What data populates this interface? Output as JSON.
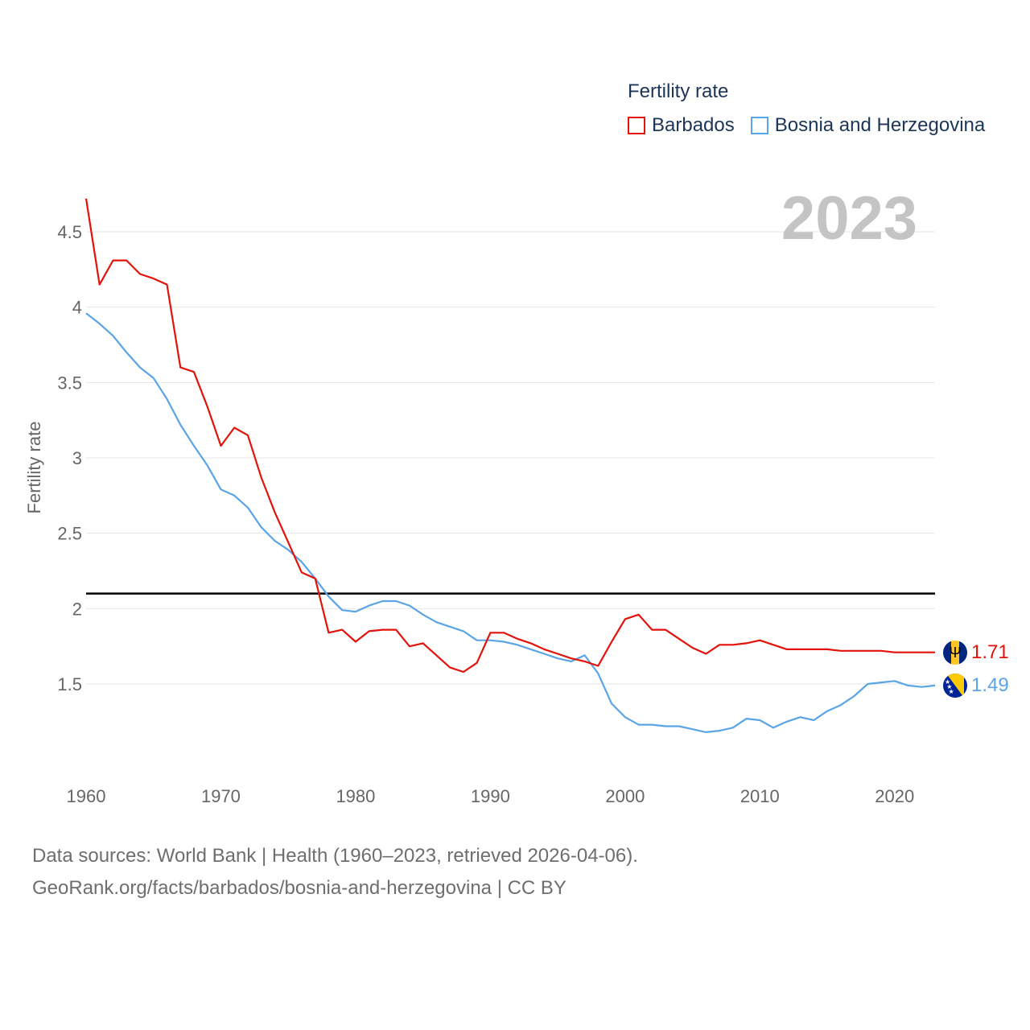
{
  "chart_data": {
    "type": "line",
    "title": "Fertility rate",
    "ylabel": "Fertility rate",
    "xlabel": "",
    "year_label": "2023",
    "xlim": [
      1960,
      2023
    ],
    "ylim": [
      1.0,
      4.7
    ],
    "yticks": [
      1.5,
      2,
      2.5,
      3,
      3.5,
      4,
      4.5
    ],
    "ytick_labels": [
      "1.5",
      "2",
      "2.5",
      "3",
      "3.5",
      "4",
      "4.5"
    ],
    "xticks": [
      1960,
      1970,
      1980,
      1990,
      2000,
      2010,
      2020
    ],
    "xtick_labels": [
      "1960",
      "1970",
      "1980",
      "1990",
      "2000",
      "2010",
      "2020"
    ],
    "reference_line": 2.1,
    "x": [
      1960,
      1961,
      1962,
      1963,
      1964,
      1965,
      1966,
      1967,
      1968,
      1969,
      1970,
      1971,
      1972,
      1973,
      1974,
      1975,
      1976,
      1977,
      1978,
      1979,
      1980,
      1981,
      1982,
      1983,
      1984,
      1985,
      1986,
      1987,
      1988,
      1989,
      1990,
      1991,
      1992,
      1993,
      1994,
      1995,
      1996,
      1997,
      1998,
      1999,
      2000,
      2001,
      2002,
      2003,
      2004,
      2005,
      2006,
      2007,
      2008,
      2009,
      2010,
      2011,
      2012,
      2013,
      2014,
      2015,
      2016,
      2017,
      2018,
      2019,
      2020,
      2021,
      2022,
      2023
    ],
    "series": [
      {
        "name": "Barbados",
        "color": "#e3120b",
        "end_label": "1.71",
        "values": [
          4.72,
          4.15,
          4.31,
          4.31,
          4.22,
          4.19,
          4.15,
          3.6,
          3.57,
          3.34,
          3.08,
          3.2,
          3.15,
          2.87,
          2.64,
          2.44,
          2.24,
          2.2,
          1.84,
          1.86,
          1.78,
          1.85,
          1.86,
          1.86,
          1.75,
          1.77,
          1.69,
          1.61,
          1.58,
          1.64,
          1.84,
          1.84,
          1.8,
          1.77,
          1.73,
          1.7,
          1.67,
          1.65,
          1.62,
          1.78,
          1.93,
          1.96,
          1.86,
          1.86,
          1.8,
          1.74,
          1.7,
          1.76,
          1.76,
          1.77,
          1.79,
          1.76,
          1.73,
          1.73,
          1.73,
          1.73,
          1.72,
          1.72,
          1.72,
          1.72,
          1.71,
          1.71,
          1.71,
          1.71
        ]
      },
      {
        "name": "Bosnia and Herzegovina",
        "color": "#5ba4e6",
        "end_label": "1.49",
        "values": [
          3.96,
          3.89,
          3.81,
          3.7,
          3.6,
          3.53,
          3.39,
          3.22,
          3.08,
          2.95,
          2.79,
          2.75,
          2.67,
          2.54,
          2.45,
          2.39,
          2.31,
          2.2,
          2.08,
          1.99,
          1.98,
          2.02,
          2.05,
          2.05,
          2.02,
          1.96,
          1.91,
          1.88,
          1.85,
          1.79,
          1.79,
          1.78,
          1.76,
          1.73,
          1.7,
          1.67,
          1.65,
          1.69,
          1.57,
          1.37,
          1.28,
          1.23,
          1.23,
          1.22,
          1.22,
          1.2,
          1.18,
          1.19,
          1.21,
          1.27,
          1.26,
          1.21,
          1.25,
          1.28,
          1.26,
          1.32,
          1.36,
          1.42,
          1.5,
          1.51,
          1.52,
          1.49,
          1.48,
          1.49
        ]
      }
    ]
  },
  "legend": {
    "title": "Fertility rate",
    "items": [
      "Barbados",
      "Bosnia and Herzegovina"
    ]
  },
  "footer": {
    "line1": "Data sources: World Bank | Health (1960–2023, retrieved 2026-04-06).",
    "line2": "GeoRank.org/facts/barbados/bosnia-and-herzegovina | CC BY"
  },
  "flags": {
    "barbados": "barbados-flag-icon",
    "bosnia": "bosnia-flag-icon"
  }
}
